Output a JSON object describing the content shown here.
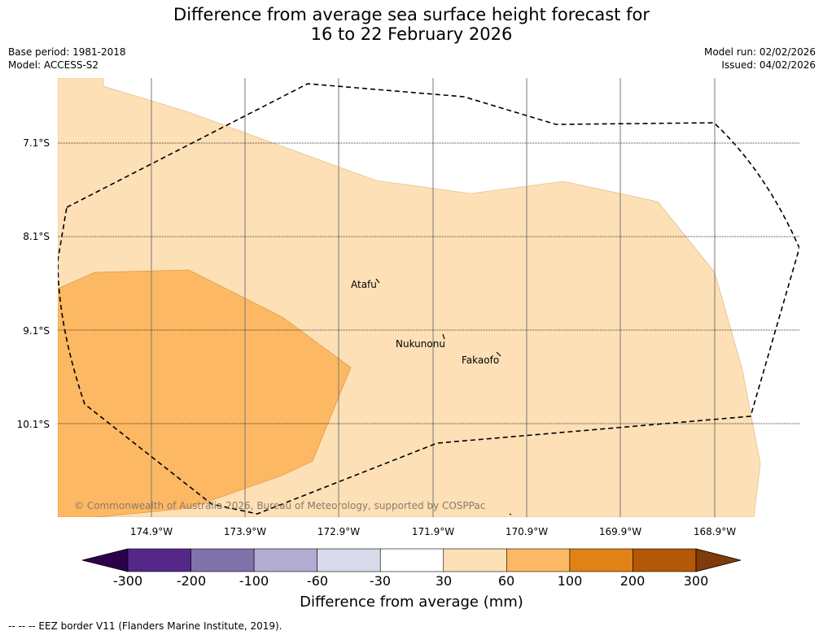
{
  "header": {
    "title_line1": "Difference from average sea surface height forecast for",
    "title_line2": "16 to 22 February 2026",
    "base_period": "Base period: 1981-2018",
    "model": "Model: ACCESS-S2",
    "model_run": "Model run: 02/02/2026",
    "issued": "Issued: 04/02/2026"
  },
  "map": {
    "lat_labels": [
      "7.1°S",
      "8.1°S",
      "9.1°S",
      "10.1°S"
    ],
    "lon_labels": [
      "174.9°W",
      "173.9°W",
      "172.9°W",
      "171.9°W",
      "170.9°W",
      "169.9°W",
      "168.9°W"
    ],
    "places": [
      {
        "name": "Atafu"
      },
      {
        "name": "Nukunonu"
      },
      {
        "name": "Fakaofo"
      }
    ],
    "copyright": "© Commonwealth of Australia 2026, Bureau of Meteorology, supported by COSPPac"
  },
  "colorbar": {
    "ticks": [
      "-300",
      "-200",
      "-100",
      "-60",
      "-30",
      "30",
      "60",
      "100",
      "200",
      "300"
    ],
    "colors": [
      "#2d004b",
      "#542788",
      "#8073ac",
      "#b2abd2",
      "#d8daeb",
      "#ffffff",
      "#fee0b6",
      "#fdb863",
      "#e08214",
      "#b35806",
      "#7f3b08"
    ],
    "title": "Difference from average (mm)"
  },
  "footer": {
    "legend_text": "--  --  -- EEZ border V11 (Flanders Marine Institute, 2019)."
  }
}
